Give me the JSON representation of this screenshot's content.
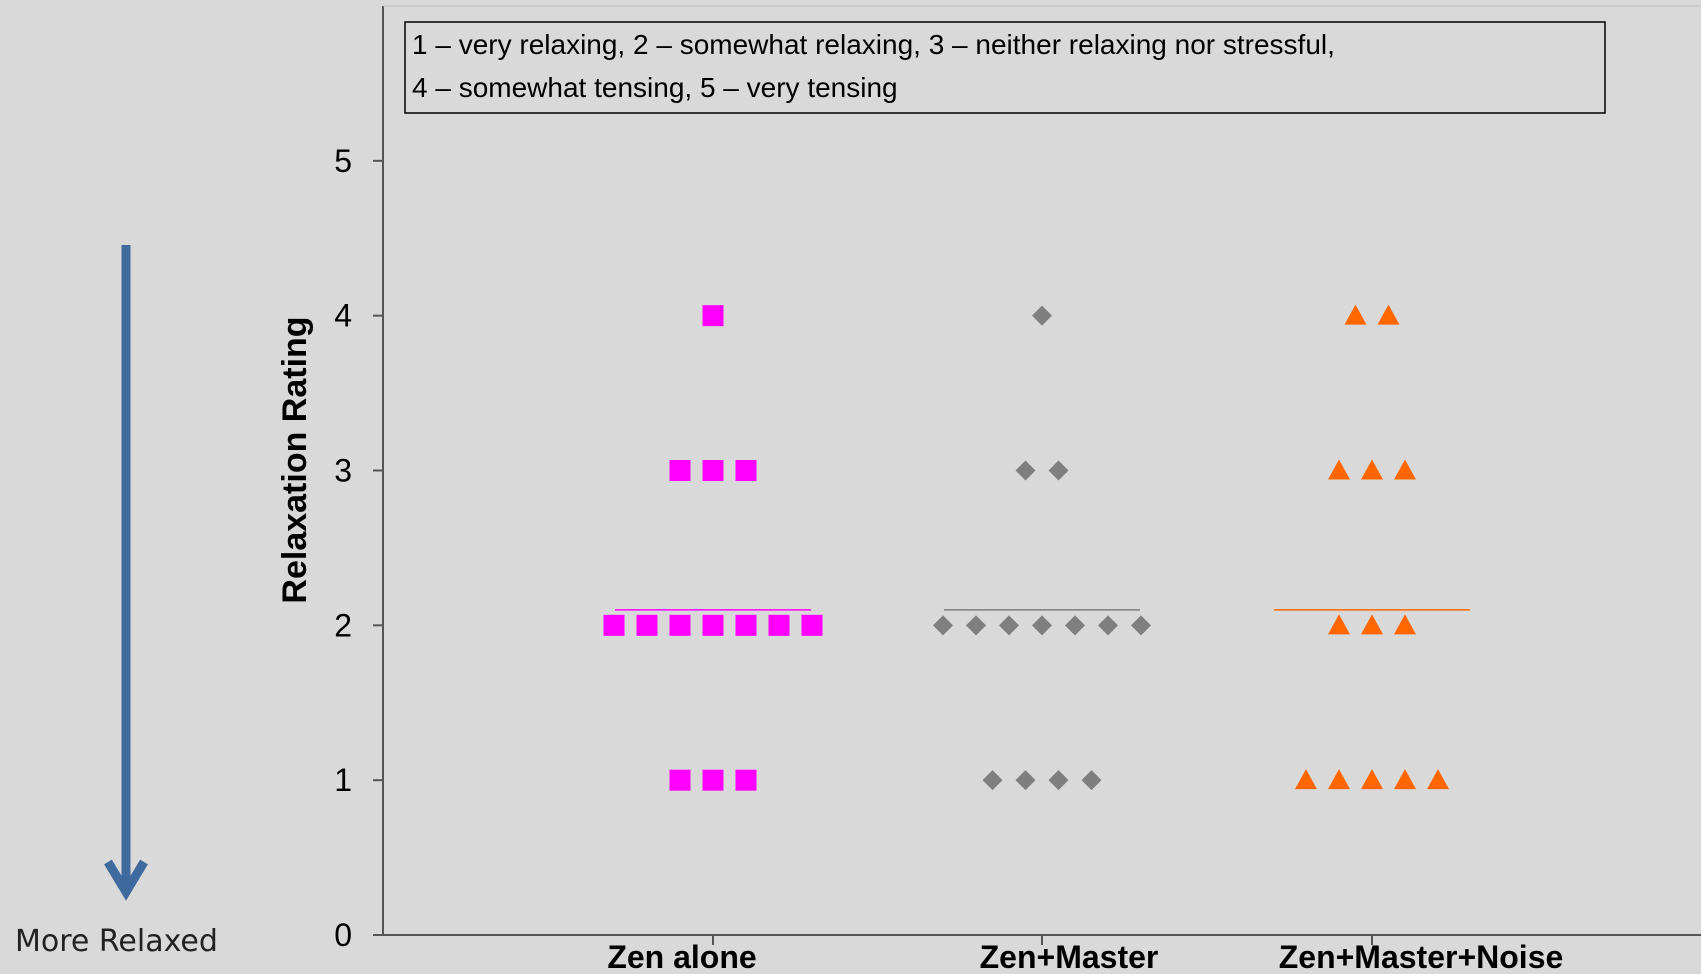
{
  "chart_data": {
    "type": "scatter",
    "categories": [
      "Zen alone",
      "Zen+Master",
      "Zen+Master+Noise"
    ],
    "ylabel": "Relaxation Rating",
    "xlabel": "",
    "ylim": [
      0,
      6
    ],
    "yticks": [
      0,
      1,
      2,
      3,
      4,
      5
    ],
    "grid": false,
    "legend": "none",
    "annotation": {
      "line1": "1 – very relaxing, 2 – somewhat relaxing, 3 – neither relaxing nor stressful,",
      "line2": "4 – somewhat tensing,  5 – very tensing"
    },
    "series": [
      {
        "category": "Zen alone",
        "marker": "square",
        "color": "#ff00ff",
        "counts": [
          {
            "y": 1,
            "n": 3
          },
          {
            "y": 2,
            "n": 7
          },
          {
            "y": 3,
            "n": 3
          },
          {
            "y": 4,
            "n": 1
          }
        ],
        "mean": 2.1
      },
      {
        "category": "Zen+Master",
        "marker": "diamond",
        "color": "#7f7f7f",
        "counts": [
          {
            "y": 1,
            "n": 4
          },
          {
            "y": 2,
            "n": 7
          },
          {
            "y": 3,
            "n": 2
          },
          {
            "y": 4,
            "n": 1
          }
        ],
        "mean": 2.1
      },
      {
        "category": "Zen+Master+Noise",
        "marker": "triangle",
        "color": "#ff6600",
        "counts": [
          {
            "y": 1,
            "n": 5
          },
          {
            "y": 2,
            "n": 3
          },
          {
            "y": 3,
            "n": 3
          },
          {
            "y": 4,
            "n": 2
          }
        ],
        "mean": 2.1
      }
    ]
  },
  "side_indicator": {
    "label": "More Relaxed",
    "arrow_color": "#3f6a9d"
  }
}
